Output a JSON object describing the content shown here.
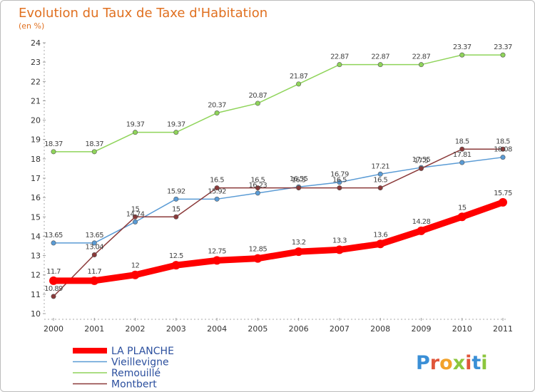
{
  "title": "Evolution du Taux de Taxe d'Habitation",
  "unit": "(en %)",
  "logo": {
    "letters": [
      "P",
      "r",
      "o",
      "x",
      "i",
      "t",
      "i"
    ],
    "colors": [
      "#3a8fd6",
      "#e0553a",
      "#f2a22a",
      "#8cc63e",
      "#e0553a",
      "#3a8fd6",
      "#8cc63e"
    ]
  },
  "chart_data": {
    "type": "line",
    "title": "Evolution du Taux de Taxe d'Habitation",
    "ylabel": "(en %)",
    "ylim": [
      10,
      24
    ],
    "yticks": [
      "10",
      "11",
      "12",
      "13",
      "14",
      "15",
      "16",
      "17",
      "18",
      "19",
      "20",
      "21",
      "22",
      "23",
      "24"
    ],
    "x": [
      "2000",
      "2001",
      "2002",
      "2003",
      "2004",
      "2005",
      "2006",
      "2007",
      "2008",
      "2009",
      "2010",
      "2011"
    ],
    "grid": false,
    "legend": "bottom-left",
    "series": [
      {
        "name": "LA PLANCHE",
        "color": "#ff0000",
        "highlight": true,
        "values": [
          11.7,
          11.7,
          12,
          12.5,
          12.75,
          12.85,
          13.2,
          13.3,
          13.6,
          14.28,
          15,
          15.75
        ],
        "labels": [
          "11.7",
          "11.7",
          "12",
          "12.5",
          "12.75",
          "12.85",
          "13.2",
          "13.3",
          "13.6",
          "14.28",
          "15",
          "15.75"
        ]
      },
      {
        "name": "Vieillevigne",
        "color": "#5a9bd5",
        "highlight": false,
        "values": [
          13.65,
          13.65,
          14.74,
          15.92,
          15.92,
          16.23,
          16.55,
          16.79,
          17.21,
          17.55,
          17.81,
          18.08
        ],
        "labels": [
          "13.65",
          "13.65",
          "14.74",
          "15.92",
          "15.92",
          "16.23",
          "16.55",
          "16.79",
          "17.21",
          "17.55",
          "17.81",
          "18.08"
        ]
      },
      {
        "name": "Remouillé",
        "color": "#8fd45a",
        "highlight": false,
        "values": [
          18.37,
          18.37,
          19.37,
          19.37,
          20.37,
          20.87,
          21.87,
          22.87,
          22.87,
          22.87,
          23.37,
          23.37
        ],
        "labels": [
          "18.37",
          "18.37",
          "19.37",
          "19.37",
          "20.37",
          "20.87",
          "21.87",
          "22.87",
          "22.87",
          "22.87",
          "23.37",
          "23.37"
        ]
      },
      {
        "name": "Montbert",
        "color": "#8b3a3a",
        "highlight": false,
        "values": [
          10.89,
          13.04,
          15,
          15,
          16.5,
          16.5,
          16.5,
          16.5,
          16.5,
          17.5,
          18.5,
          18.5
        ],
        "labels": [
          "10.89",
          "13.04",
          "15",
          "15",
          "16.5",
          "16.5",
          "16.5",
          "16.5",
          "16.5",
          "17.5",
          "18.5",
          "18.5"
        ]
      }
    ]
  }
}
